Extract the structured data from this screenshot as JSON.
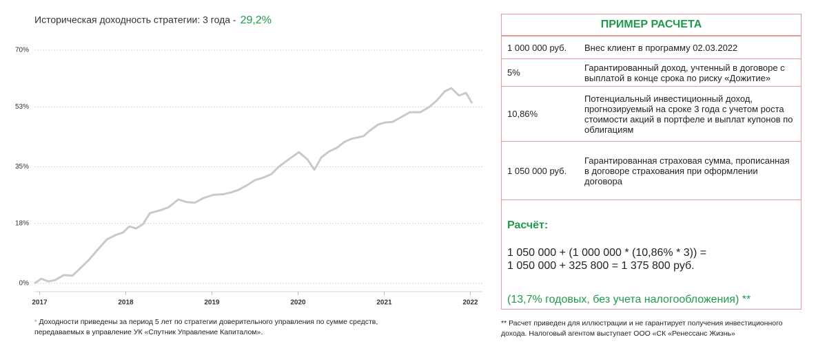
{
  "chart_data": {
    "type": "line",
    "title": "Историческая доходность стратегии:  3 года -",
    "title_highlight": "29,2%",
    "x": [
      2016.94,
      2017.02,
      2017.1,
      2017.18,
      2017.28,
      2017.38,
      2017.47,
      2017.57,
      2017.66,
      2017.78,
      2017.88,
      2017.97,
      2018.04,
      2018.12,
      2018.2,
      2018.28,
      2018.42,
      2018.5,
      2018.61,
      2018.71,
      2018.8,
      2018.9,
      2019.02,
      2019.14,
      2019.22,
      2019.31,
      2019.41,
      2019.5,
      2019.6,
      2019.69,
      2019.78,
      2019.89,
      2020.01,
      2020.11,
      2020.19,
      2020.27,
      2020.36,
      2020.45,
      2020.54,
      2020.62,
      2020.76,
      2020.83,
      2020.93,
      2021.01,
      2021.1,
      2021.19,
      2021.3,
      2021.42,
      2021.52,
      2021.61,
      2021.7,
      2021.78,
      2021.87,
      2021.95,
      2022.02
    ],
    "values": [
      0,
      1.4,
      0.6,
      1,
      2.5,
      2.3,
      4.5,
      7,
      9.7,
      13.2,
      14.5,
      15.3,
      17.1,
      16.5,
      17.8,
      21.1,
      22.1,
      22.9,
      25.2,
      24.4,
      24.2,
      25.6,
      26.6,
      26.8,
      27.3,
      28.1,
      29.5,
      31,
      31.8,
      32.8,
      35.1,
      37.2,
      39.4,
      37.2,
      34.1,
      37.8,
      39.6,
      40.7,
      42.5,
      43.4,
      44.2,
      45.8,
      47.7,
      48.3,
      48.5,
      49.8,
      51.4,
      51.4,
      52.9,
      54.9,
      57.6,
      58.6,
      56.4,
      57.2,
      54.1
    ],
    "color": "#c9c9c9",
    "xlim": [
      2016.94,
      2022.14
    ],
    "xticks": [
      2017,
      2018,
      2019,
      2020,
      2021,
      2022
    ],
    "ylim": [
      0,
      70
    ],
    "yticks": [
      {
        "value": 0,
        "label": "0%"
      },
      {
        "value": 18,
        "label": "18%"
      },
      {
        "value": 35,
        "label": "35%"
      },
      {
        "value": 53,
        "label": "53%"
      },
      {
        "value": 70,
        "label": "70%"
      }
    ],
    "grid": true
  },
  "footnote_left": {
    "star": "*",
    "text": "Доходности приведены за период 5 лет по стратегии доверительного управления по сумме средств,  передаваемых в управление УК «Спутник Управление Капиталом»."
  },
  "table": {
    "title": "ПРИМЕР РАСЧЕТА",
    "rows": [
      [
        "1 000 000 руб.",
        "Внес клиент в программу 02.03.2022"
      ],
      [
        "5%",
        "Гарантированный доход, учтенный в договоре с выплатой в конце срока по риску «Дожитие»"
      ],
      [
        "10,86%",
        "Потенциальный инвестиционный доход, прогнозируемый на сроке 3 года с учетом роста стоимости акций в портфеле и выплат купонов по облигациям"
      ],
      [
        "1 050 000 руб.",
        "Гарантированная страховая сумма, прописанная в договоре страхования при оформлении договора"
      ]
    ],
    "calc_title": "Расчёт:",
    "calc_lines": [
      "1 050 000 + (1 000 000 * (10,86% * 3)) =",
      "1 050 000 + 325 800 = 1 375 800 руб."
    ],
    "calc_note": "(13,7% годовых, без учета налогообложения) **"
  },
  "footnote_right": "** Расчет приведен для иллюстрации и не гарантирует получения инвестиционного дохода. Налоговый агентом выступает ООО «СК «Ренессанс Жизнь»"
}
